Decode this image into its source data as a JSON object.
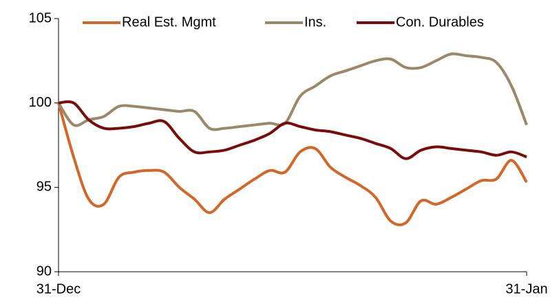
{
  "chart_data": {
    "type": "line",
    "categories": [
      "31-Dec",
      null,
      null,
      null,
      null,
      null,
      null,
      null,
      null,
      null,
      null,
      null,
      null,
      null,
      null,
      null,
      null,
      null,
      null,
      null,
      null,
      null,
      null,
      null,
      null,
      null,
      null,
      null,
      null,
      null,
      null,
      "31-Jan"
    ],
    "series": [
      {
        "name": "Real Est. Mgmt",
        "color": "#d2672a",
        "values": [
          100,
          96.8,
          94.3,
          94.0,
          95.6,
          95.9,
          96.0,
          95.9,
          95.0,
          94.3,
          93.5,
          94.3,
          94.9,
          95.5,
          96.0,
          95.9,
          97.1,
          97.3,
          96.2,
          95.6,
          95.1,
          94.4,
          93.0,
          92.9,
          94.2,
          94.0,
          94.4,
          94.9,
          95.4,
          95.5,
          96.6,
          95.3
        ]
      },
      {
        "name": "Ins.",
        "color": "#9a8868",
        "values": [
          100,
          98.7,
          99.0,
          99.2,
          99.8,
          99.8,
          99.7,
          99.6,
          99.5,
          99.5,
          98.5,
          98.5,
          98.6,
          98.7,
          98.8,
          98.8,
          100.4,
          101.0,
          101.6,
          101.9,
          102.2,
          102.5,
          102.6,
          102.1,
          102.1,
          102.5,
          102.9,
          102.8,
          102.7,
          102.4,
          101.0,
          98.7
        ]
      },
      {
        "name": "Con. Durables",
        "color": "#7a0b0b",
        "values": [
          100,
          100.0,
          99.0,
          98.5,
          98.5,
          98.6,
          98.8,
          98.9,
          97.9,
          97.1,
          97.1,
          97.2,
          97.5,
          97.8,
          98.2,
          98.8,
          98.6,
          98.4,
          98.3,
          98.1,
          97.9,
          97.6,
          97.3,
          96.7,
          97.2,
          97.4,
          97.3,
          97.2,
          97.1,
          96.9,
          97.1,
          96.8
        ]
      }
    ],
    "ylim": [
      90,
      105
    ],
    "yticks": [
      90,
      95,
      100,
      105
    ],
    "legend": "top"
  }
}
